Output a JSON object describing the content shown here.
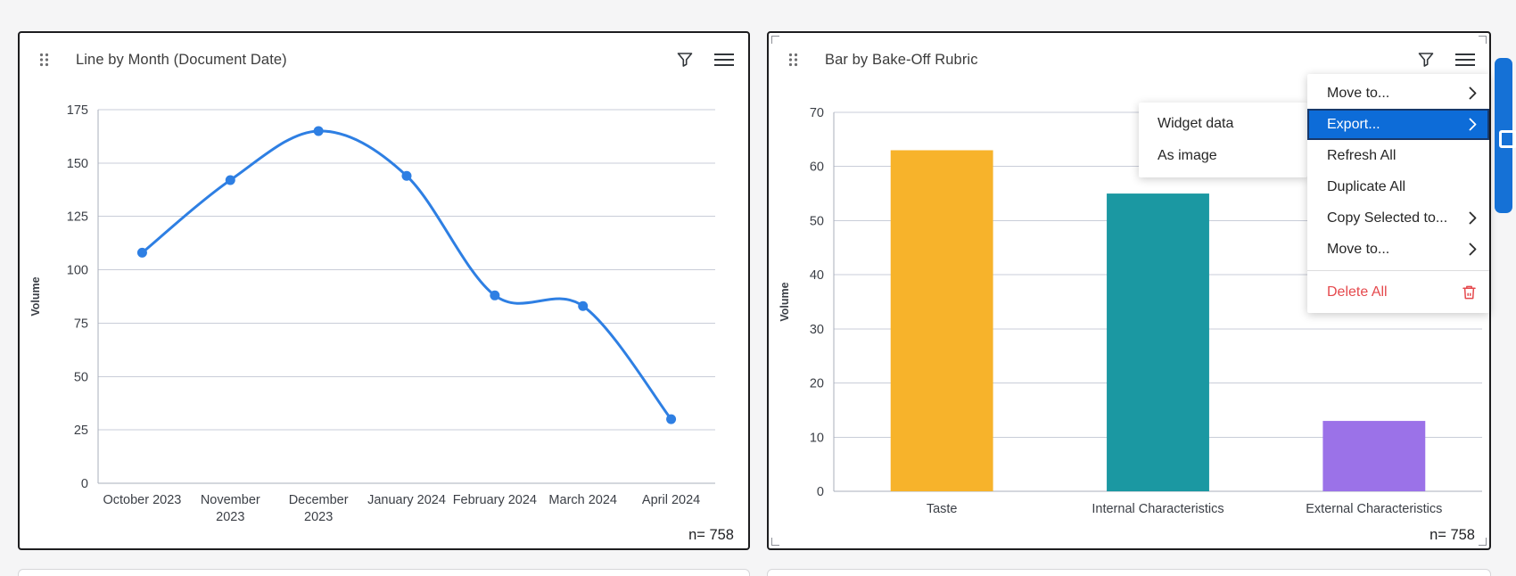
{
  "page": {
    "background": "#f5f5f6"
  },
  "widgets": {
    "line": {
      "title": "Line by Month (Document Date)",
      "n_label": "n= 758"
    },
    "bar": {
      "title": "Bar by Bake-Off Rubric",
      "n_label": "n= 758"
    }
  },
  "chart_data": [
    {
      "type": "line",
      "title": "Line by Month (Document Date)",
      "xlabel": "",
      "ylabel": "Volume",
      "ylim": [
        0,
        175
      ],
      "y_ticks": [
        0,
        25,
        50,
        75,
        100,
        125,
        150,
        175
      ],
      "grid": true,
      "categories": [
        "October 2023",
        "November 2023",
        "December 2023",
        "January 2024",
        "February 2024",
        "March 2024",
        "April 2024"
      ],
      "categories_lines": [
        [
          "October 2023"
        ],
        [
          "November",
          "2023"
        ],
        [
          "December",
          "2023"
        ],
        [
          "January 2024"
        ],
        [
          "February 2024"
        ],
        [
          "March 2024"
        ],
        [
          "April 2024"
        ]
      ],
      "values": [
        108,
        142,
        165,
        144,
        88,
        83,
        30
      ],
      "line_color": "#2e7fe3",
      "marker": "circle",
      "n": 758
    },
    {
      "type": "bar",
      "title": "Bar by Bake-Off Rubric",
      "xlabel": "",
      "ylabel": "Volume",
      "ylim": [
        0,
        70
      ],
      "y_ticks": [
        0,
        10,
        20,
        30,
        40,
        50,
        60,
        70
      ],
      "grid": true,
      "categories": [
        "Taste",
        "Internal Characteristics",
        "External Characteristics"
      ],
      "values": [
        63,
        55,
        13
      ],
      "bar_colors": [
        "#f7b32b",
        "#1b98a2",
        "#9b72e8"
      ],
      "n": 758
    }
  ],
  "context_menu": {
    "items": [
      {
        "label": "Move to...",
        "submenu_arrow": true
      },
      {
        "label": "Export...",
        "submenu_arrow": true,
        "highlighted": true
      },
      {
        "label": "Refresh All"
      },
      {
        "label": "Duplicate All"
      },
      {
        "label": "Copy Selected to...",
        "submenu_arrow": true
      },
      {
        "label": "Move to...",
        "submenu_arrow": true
      },
      {
        "divider": true
      },
      {
        "label": "Delete All",
        "danger": true,
        "trash_icon": true
      }
    ],
    "highlight_color": "#0d6cd8",
    "danger_color": "#e5494d"
  },
  "export_submenu": {
    "items": [
      "Widget data",
      "As image"
    ]
  },
  "icons": {
    "drag": "six-dot-grid",
    "filter": "funnel-outline",
    "menu": "hamburger-lines",
    "chevron": "right-chevron",
    "trash": "trash-outline",
    "scroll_handle": "square-outline"
  },
  "colors": {
    "widget_border": "#1d1d1f",
    "grid_line": "#c9cdd8",
    "axis_line": "#a9afbb",
    "scrollbar": "#1571d6"
  }
}
